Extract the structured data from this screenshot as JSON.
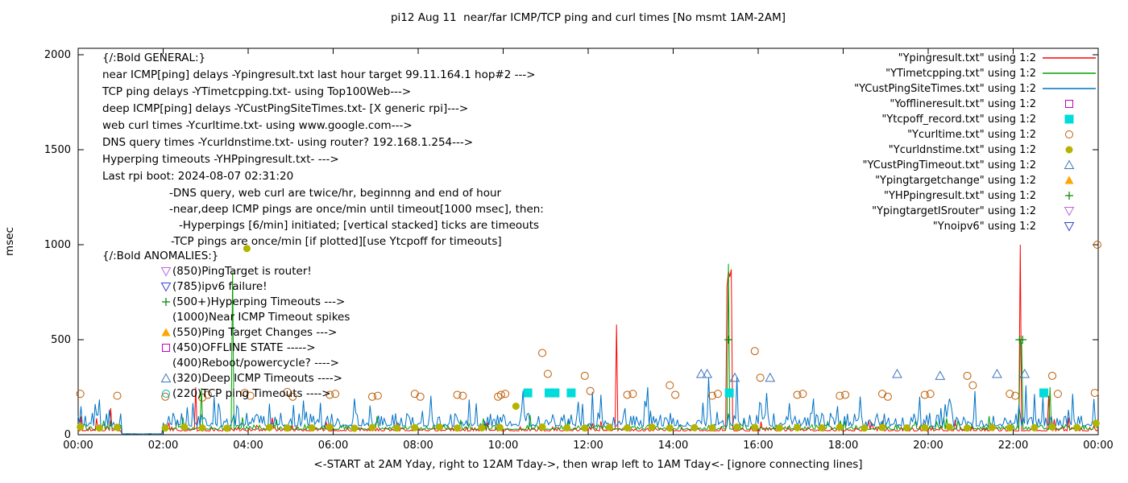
{
  "chart_data": {
    "type": "line",
    "title": "pi12 Aug 11  near/far ICMP/TCP ping and curl times [No msmt 1AM-2AM]",
    "xlabel": "<-START at 2AM Yday, right to 12AM Tday->, then wrap left to 1AM Tday<- [ignore connecting lines]",
    "ylabel": "msec",
    "ylim": [
      0,
      2000
    ],
    "xlim_hours": [
      0,
      24
    ],
    "x_ticks": [
      "00:00",
      "02:00",
      "04:00",
      "06:00",
      "08:00",
      "10:00",
      "12:00",
      "14:00",
      "16:00",
      "18:00",
      "20:00",
      "22:00",
      "00:00"
    ],
    "y_ticks": [
      0,
      500,
      1000,
      1500,
      2000
    ],
    "grid": false,
    "legend_position": "top-right",
    "no_measurement_window_hours": [
      1,
      2
    ],
    "series": [
      {
        "name": "Ypingresult.txt",
        "legend": "\"Ypingresult.txt\" using 1:2",
        "type": "line",
        "color": "#ff0000",
        "base": 20,
        "jitter": 22,
        "peak_p": 0.04,
        "peak": 60,
        "spikes": [
          [
            0.05,
            95
          ],
          [
            0.78,
            140
          ],
          [
            2.77,
            250
          ],
          [
            4.55,
            90
          ],
          [
            12.68,
            580
          ],
          [
            15.27,
            780
          ],
          [
            15.3,
            860
          ],
          [
            15.33,
            830
          ],
          [
            15.36,
            870
          ],
          [
            22.17,
            1000
          ],
          [
            22.83,
            205
          ],
          [
            23.3,
            90
          ]
        ]
      },
      {
        "name": "YTimetcpping.txt",
        "legend": "\"YTimetcpping.txt\" using 1:2",
        "type": "line",
        "color": "#00a000",
        "base": 28,
        "jitter": 26,
        "peak_p": 0.05,
        "peak": 70,
        "spikes": [
          [
            2.9,
            245
          ],
          [
            3.62,
            855
          ],
          [
            15.31,
            900
          ],
          [
            22.17,
            500
          ],
          [
            22.2,
            480
          ],
          [
            22.86,
            250
          ]
        ]
      },
      {
        "name": "YCustPingSiteTimes.txt",
        "legend": "\"YCustPingSiteTimes.txt\" using 1:2",
        "type": "line",
        "color": "#0072c6",
        "base": 45,
        "jitter": 70,
        "peak_p": 0.1,
        "peak": 120,
        "spikes": [
          [
            0.5,
            185
          ],
          [
            3.2,
            200
          ],
          [
            5.3,
            180
          ],
          [
            6.5,
            190
          ],
          [
            8.3,
            205
          ],
          [
            9.2,
            185
          ],
          [
            10.45,
            230
          ],
          [
            12.3,
            210
          ],
          [
            13.4,
            250
          ],
          [
            14.82,
            300
          ],
          [
            15.5,
            305
          ],
          [
            16.2,
            220
          ],
          [
            17.3,
            190
          ],
          [
            18.4,
            200
          ],
          [
            19.8,
            200
          ],
          [
            20.5,
            190
          ],
          [
            21.1,
            230
          ],
          [
            22.3,
            260
          ],
          [
            23.4,
            215
          ]
        ]
      },
      {
        "name": "Yofflineresult.txt",
        "legend": "\"Yofflineresult.txt\" using 1:2",
        "type": "marker",
        "marker": "square-open",
        "color": "#c000c0",
        "points": []
      },
      {
        "name": "Ytcpoff_record.txt",
        "legend": "\"Ytcpoff_record.txt\" using 1:2",
        "type": "marker",
        "marker": "square-fill",
        "color": "#00dcdc",
        "points": [
          [
            10.58,
            220
          ],
          [
            11.08,
            220
          ],
          [
            11.22,
            220
          ],
          [
            11.6,
            220
          ],
          [
            15.32,
            220
          ],
          [
            22.72,
            220
          ]
        ]
      },
      {
        "name": "Ycurltime.txt",
        "legend": "\"Ycurltime.txt\" using 1:2",
        "type": "marker",
        "marker": "circle-open",
        "color": "#bf5b00",
        "points": [
          [
            0.05,
            215
          ],
          [
            0.92,
            205
          ],
          [
            2.05,
            200
          ],
          [
            2.92,
            195
          ],
          [
            3.05,
            210
          ],
          [
            3.92,
            220
          ],
          [
            4.05,
            205
          ],
          [
            4.92,
            225
          ],
          [
            5.05,
            200
          ],
          [
            5.92,
            210
          ],
          [
            6.05,
            215
          ],
          [
            6.92,
            200
          ],
          [
            7.05,
            205
          ],
          [
            7.92,
            215
          ],
          [
            8.05,
            200
          ],
          [
            8.92,
            210
          ],
          [
            9.05,
            205
          ],
          [
            9.88,
            200
          ],
          [
            9.95,
            210
          ],
          [
            10.05,
            215
          ],
          [
            10.92,
            430
          ],
          [
            11.05,
            320
          ],
          [
            11.92,
            310
          ],
          [
            12.05,
            230
          ],
          [
            12.92,
            210
          ],
          [
            13.05,
            215
          ],
          [
            13.92,
            260
          ],
          [
            14.05,
            210
          ],
          [
            14.92,
            205
          ],
          [
            15.05,
            215
          ],
          [
            15.92,
            440
          ],
          [
            16.05,
            300
          ],
          [
            16.92,
            210
          ],
          [
            17.05,
            215
          ],
          [
            17.92,
            205
          ],
          [
            18.05,
            210
          ],
          [
            18.92,
            215
          ],
          [
            19.05,
            200
          ],
          [
            19.92,
            210
          ],
          [
            20.05,
            215
          ],
          [
            20.92,
            310
          ],
          [
            21.05,
            260
          ],
          [
            21.92,
            215
          ],
          [
            22.05,
            205
          ],
          [
            22.92,
            310
          ],
          [
            23.05,
            215
          ],
          [
            23.92,
            220
          ],
          [
            23.98,
            1000
          ]
        ]
      },
      {
        "name": "Ycurldnstime.txt",
        "legend": "\"Ycurldnstime.txt\" using 1:2",
        "type": "marker",
        "marker": "circle-fill",
        "color": "#b3b300",
        "points": [
          [
            0.05,
            40
          ],
          [
            0.5,
            35
          ],
          [
            0.92,
            38
          ],
          [
            2.05,
            35
          ],
          [
            2.5,
            40
          ],
          [
            2.92,
            36
          ],
          [
            3.5,
            34
          ],
          [
            3.97,
            980
          ],
          [
            4.5,
            38
          ],
          [
            4.92,
            35
          ],
          [
            5.5,
            36
          ],
          [
            5.92,
            40
          ],
          [
            6.5,
            34
          ],
          [
            6.92,
            38
          ],
          [
            7.5,
            35
          ],
          [
            7.92,
            37
          ],
          [
            8.5,
            40
          ],
          [
            8.92,
            35
          ],
          [
            9.5,
            36
          ],
          [
            9.92,
            38
          ],
          [
            10.3,
            150
          ],
          [
            10.92,
            40
          ],
          [
            11.5,
            36
          ],
          [
            11.92,
            35
          ],
          [
            12.5,
            38
          ],
          [
            12.92,
            36
          ],
          [
            13.5,
            40
          ],
          [
            13.92,
            35
          ],
          [
            14.5,
            37
          ],
          [
            14.92,
            36
          ],
          [
            15.5,
            40
          ],
          [
            15.92,
            38
          ],
          [
            16.5,
            35
          ],
          [
            16.92,
            37
          ],
          [
            17.5,
            36
          ],
          [
            17.92,
            40
          ],
          [
            18.5,
            35
          ],
          [
            18.92,
            38
          ],
          [
            19.5,
            36
          ],
          [
            19.92,
            37
          ],
          [
            20.5,
            40
          ],
          [
            20.92,
            35
          ],
          [
            21.5,
            38
          ],
          [
            21.92,
            36
          ],
          [
            22.5,
            37
          ],
          [
            22.92,
            40
          ],
          [
            23.5,
            38
          ],
          [
            23.95,
            60
          ]
        ]
      },
      {
        "name": "YCustPingTimeout.txt",
        "legend": "\"YCustPingTimeout.txt\" using 1:2",
        "type": "marker",
        "marker": "tri-up-open",
        "color": "#3f76bf",
        "points": [
          [
            14.66,
            320
          ],
          [
            14.8,
            320
          ],
          [
            15.45,
            300
          ],
          [
            16.28,
            300
          ],
          [
            19.27,
            320
          ],
          [
            20.28,
            310
          ],
          [
            21.62,
            320
          ],
          [
            22.27,
            320
          ]
        ]
      },
      {
        "name": "Ypingtargetchange",
        "legend": "\"Ypingtargetchange\" using 1:2",
        "type": "marker",
        "marker": "tri-up-fill",
        "color": "#ffa500",
        "points": []
      },
      {
        "name": "YHPpingresult.txt",
        "legend": "\"YHPpingresult.txt\" using 1:2",
        "type": "marker",
        "marker": "plus",
        "color": "#0e8a0e",
        "points": [
          [
            15.3,
            500
          ],
          [
            22.15,
            500
          ],
          [
            22.22,
            500
          ]
        ]
      },
      {
        "name": "YpingtargetISrouter",
        "legend": "\"YpingtargetISrouter\" using 1:2",
        "type": "marker",
        "marker": "tri-down-open",
        "color": "#bb66dd",
        "points": []
      },
      {
        "name": "Ynoipv6",
        "legend": "\"Ynoipv6\" using 1:2",
        "type": "marker",
        "marker": "tri-down-open",
        "color": "#3344cc",
        "points": []
      }
    ]
  },
  "annotations": {
    "general": {
      "header": "{/:Bold GENERAL:}",
      "lines": [
        "near ICMP[ping] delays -Ypingresult.txt last hour target 99.11.164.1 hop#2 --->",
        "TCP ping delays -YTimetcpping.txt- using Top100Web--->",
        "deep ICMP[ping] delays -YCustPingSiteTimes.txt- [X generic rpi]--->",
        "web curl times -Ycurltime.txt- using www.google.com--->",
        "DNS query times -Ycurldnstime.txt- using router? 192.168.1.254--->",
        "Hyperping timeouts -YHPpingresult.txt- --->",
        "Last rpi boot: 2024-08-07 02:31:20"
      ],
      "notes": [
        "-DNS query, web curl are twice/hr, beginnng and end of hour",
        "-near,deep ICMP pings are once/min until timeout[1000 msec], then:",
        "-Hyperpings [6/min] initiated; [vertical stacked] ticks are timeouts",
        "-TCP pings are once/min [if plotted][use Ytcpoff for timeouts]"
      ],
      "note_indents": [
        83,
        83,
        95,
        85
      ]
    },
    "anomalies": {
      "header": "{/:Bold ANOMALIES:}",
      "items": [
        {
          "marker": "tri-down-open",
          "color": "#bb66dd",
          "label": "(850)PingTarget is router!"
        },
        {
          "marker": "tri-down-open",
          "color": "#3344cc",
          "label": "(785)ipv6 failure!"
        },
        {
          "marker": "plus",
          "color": "#0e8a0e",
          "label": "(500+)Hyperping Timeouts --->"
        },
        {
          "marker": null,
          "color": "#000000",
          "label": "(1000)Near ICMP Timeout spikes"
        },
        {
          "marker": "tri-up-fill",
          "color": "#ffa500",
          "label": "(550)Ping Target Changes --->"
        },
        {
          "marker": "square-open",
          "color": "#c000c0",
          "label": "(450)OFFLINE STATE ----->"
        },
        {
          "marker": null,
          "color": "#000000",
          "label": "(400)Reboot/powercycle? ---->"
        },
        {
          "marker": "tri-up-open",
          "color": "#3f76bf",
          "label": "(320)Deep ICMP Timeouts ---->"
        },
        {
          "marker": "circle-open",
          "color": "#00b0b0",
          "label": "(220)TCP ping Timeouts ---->"
        }
      ]
    }
  }
}
